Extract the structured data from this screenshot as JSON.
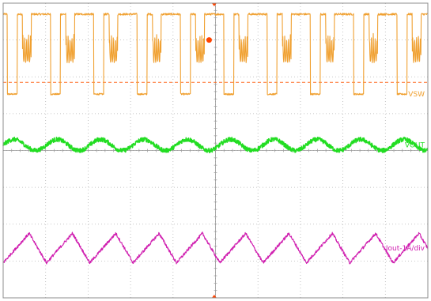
{
  "chart_data": {
    "type": "line",
    "grid": true,
    "x_divisions": 10,
    "y_divisions": 8,
    "xlim": [
      0,
      10
    ],
    "ylim": [
      0,
      8
    ],
    "series": [
      {
        "name": "VSW",
        "label": "VSW",
        "color": "#f0a030",
        "kind": "switching",
        "high_level": 7.7,
        "low_level": 5.53,
        "cycle_period": 1.02,
        "phase_offset": 0.33,
        "duty": 0.77,
        "ringing_extra": true
      },
      {
        "name": "VOUT",
        "label": "VOUT",
        "color": "#22dd22",
        "kind": "ripple",
        "center_level": 4.15,
        "amplitude": 0.15,
        "cycle_period": 1.02,
        "noise": 0.06
      },
      {
        "name": "Iout-1A/div",
        "label": "Iout-1A/div",
        "color": "#d020b0",
        "kind": "triangle",
        "center_level": 1.35,
        "amplitude": 0.4,
        "cycle_period": 1.02,
        "noise": 0.04
      }
    ],
    "reference_lines": [
      {
        "name": "trigger-level",
        "color": "#ff6a20",
        "level": 5.85,
        "style": "dashed"
      }
    ],
    "markers": [
      {
        "name": "trigger-marker",
        "color": "#ff4400",
        "x": 4.85,
        "y": 7.0
      },
      {
        "name": "time-reference-top",
        "color": "#ff4400",
        "x": 4.97,
        "y": 8.0
      },
      {
        "name": "time-reference-bottom",
        "color": "#ff4400",
        "x": 4.97,
        "y": 0.0
      }
    ]
  }
}
